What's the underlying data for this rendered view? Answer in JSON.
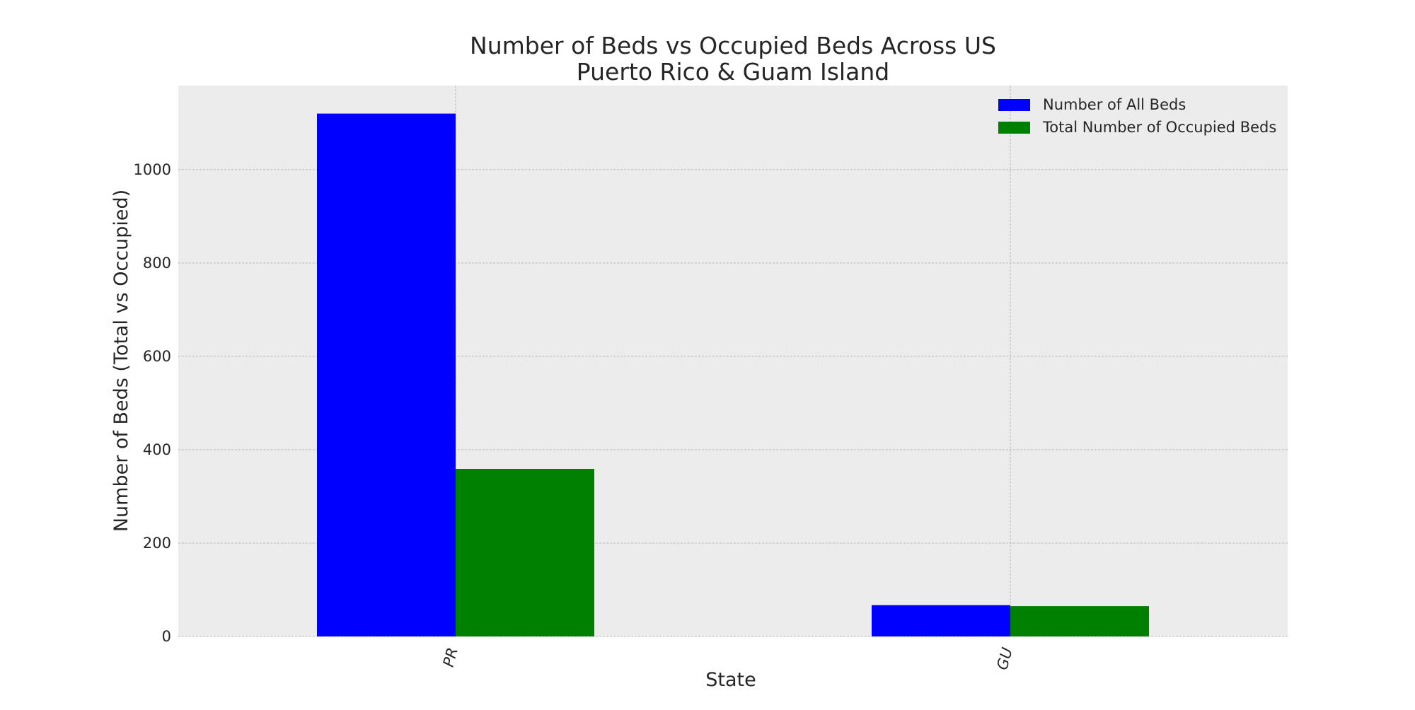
{
  "chart_data": {
    "type": "bar",
    "title_lines": [
      "Number of Beds vs Occupied Beds Across US",
      "Puerto Rico & Guam Island"
    ],
    "xlabel": "State",
    "ylabel": "Number of Beds (Total vs Occupied)",
    "categories": [
      "PR",
      "GU"
    ],
    "series": [
      {
        "name": "Number of All Beds",
        "color": "#0000ff",
        "values": [
          1120,
          67
        ]
      },
      {
        "name": "Total Number of Occupied Beds",
        "color": "#008000",
        "values": [
          359,
          65
        ]
      }
    ],
    "ylim": [
      0,
      1180
    ],
    "yticks": [
      0,
      200,
      400,
      600,
      800,
      1000
    ],
    "grid": true,
    "legend_position": "top-right",
    "plot_background": "#ececec"
  }
}
